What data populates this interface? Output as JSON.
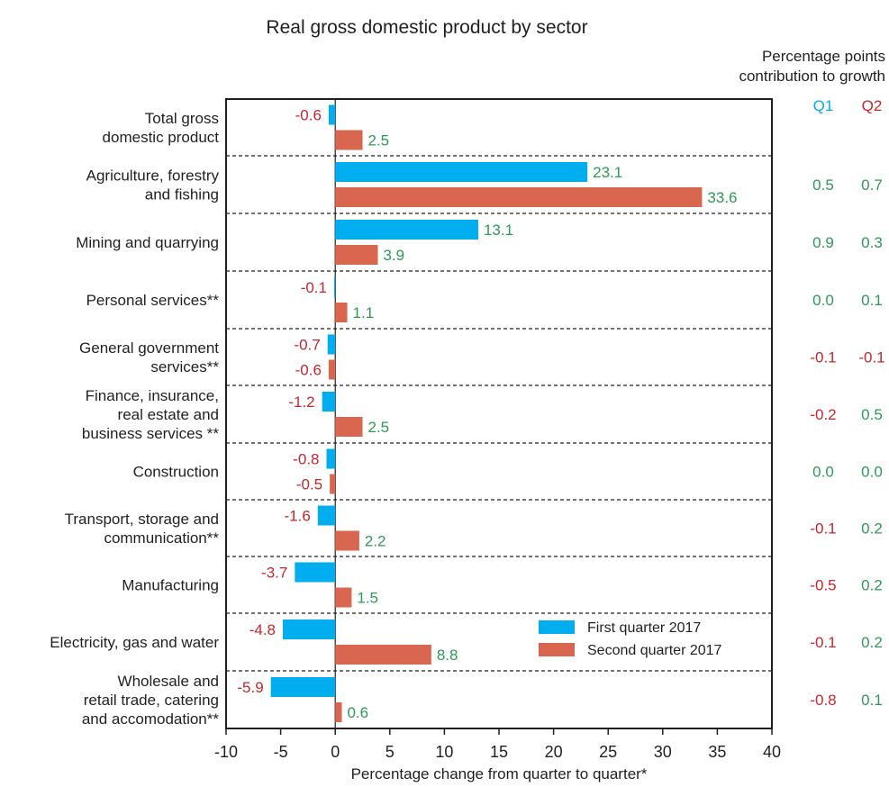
{
  "chart_data": {
    "type": "bar",
    "orientation": "horizontal",
    "title": "Real gross domestic product by sector",
    "xlabel": "Percentage change from quarter to quarter*",
    "xlim": [
      -10,
      40
    ],
    "xticks": [
      "-10",
      "-5",
      "0",
      "5",
      "10",
      "15",
      "20",
      "25",
      "30",
      "35",
      "40"
    ],
    "categories": [
      "Total gross\ndomestic product",
      "Agriculture, forestry\nand fishing",
      "Mining and quarrying",
      "Personal services**",
      "General government\nservices**",
      "Finance, insurance,\nreal estate and\nbusiness services **",
      "Construction",
      "Transport, storage and\ncommunication**",
      "Manufacturing",
      "Electricity, gas and water",
      "Wholesale and\nretail trade, catering\nand accomodation**"
    ],
    "series": [
      {
        "name": "First quarter 2017",
        "color": "#00aeef",
        "values": [
          -0.6,
          23.1,
          13.1,
          -0.1,
          -0.7,
          -1.2,
          -0.8,
          -1.6,
          -3.7,
          -4.8,
          -5.9
        ],
        "labels": [
          "-0.6",
          "23.1",
          "13.1",
          "-0.1",
          "-0.7",
          "-1.2",
          "-0.8",
          "-1.6",
          "-3.7",
          "-4.8",
          "-5.9"
        ]
      },
      {
        "name": "Second quarter 2017",
        "color": "#d9664e",
        "values": [
          2.5,
          33.6,
          3.9,
          1.1,
          -0.6,
          2.5,
          -0.5,
          2.2,
          1.5,
          8.8,
          0.6
        ],
        "labels": [
          "2.5",
          "33.6",
          "3.9",
          "1.1",
          "-0.6",
          "2.5",
          "-0.5",
          "2.2",
          "1.5",
          "8.8",
          "0.6"
        ]
      }
    ],
    "contribution": {
      "title": "Percentage points\ncontribution to growth",
      "headers": [
        "Q1",
        "Q2"
      ],
      "header_colors": [
        "#00aeef",
        "#c8262d"
      ],
      "rows": [
        null,
        [
          "0.5",
          "0.7"
        ],
        [
          "0.9",
          "0.3"
        ],
        [
          "0.0",
          "0.1"
        ],
        [
          "-0.1",
          "-0.1"
        ],
        [
          "-0.2",
          "0.5"
        ],
        [
          "0.0",
          "0.0"
        ],
        [
          "-0.1",
          "0.2"
        ],
        [
          "-0.5",
          "0.2"
        ],
        [
          "-0.1",
          "0.2"
        ],
        [
          "-0.8",
          "0.1"
        ]
      ]
    },
    "legend_position": "inside-bottom-right",
    "grid": false,
    "colors": {
      "negative": "#c8262d",
      "positive": "#2e9a56",
      "text": "#231f20"
    }
  }
}
